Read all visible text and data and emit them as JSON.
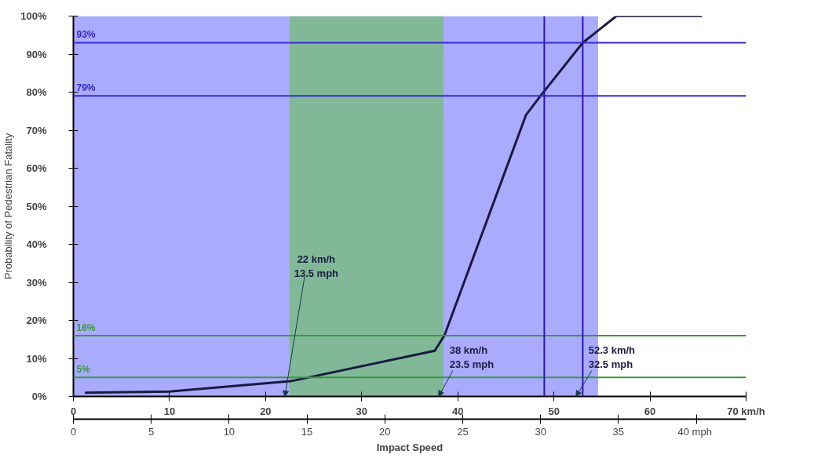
{
  "chart_data": {
    "type": "line",
    "ylabel": "Probability of Pedestrian Fatality",
    "x2label": "Impact Speed",
    "x": [
      1.2,
      10,
      22.6,
      37.6,
      38.6,
      47.1,
      48.6,
      53,
      56.5,
      65.4
    ],
    "series": [
      {
        "color": "#1a1a40",
        "values": [
          1,
          1.3,
          4,
          12,
          16,
          74,
          79,
          93,
          100,
          100
        ]
      }
    ],
    "xlim": [
      0,
      70
    ],
    "xticks": [
      0,
      10,
      20,
      30,
      40,
      50,
      60,
      {
        "value": 70,
        "label": "70 km/h"
      }
    ],
    "x2lim": [
      0,
      43.2
    ],
    "x2ticks": [
      0,
      5,
      10,
      15,
      20,
      25,
      30,
      35,
      {
        "value": 40,
        "label": "40  mph"
      }
    ],
    "ylim": [
      0,
      100
    ],
    "yticks": [
      {
        "value": 0,
        "label": "0%"
      },
      {
        "value": 10,
        "label": "10%"
      },
      {
        "value": 20,
        "label": "20%"
      },
      {
        "value": 30,
        "label": "30%"
      },
      {
        "value": 40,
        "label": "40%"
      },
      {
        "value": 50,
        "label": "50%"
      },
      {
        "value": 60,
        "label": "60%"
      },
      {
        "value": 70,
        "label": "70%"
      },
      {
        "value": 80,
        "label": "80%"
      },
      {
        "value": 90,
        "label": "90%"
      },
      {
        "value": 100,
        "label": "100%"
      }
    ],
    "bands": [
      {
        "axis": "x",
        "from": 0,
        "to": 54.6,
        "color": "#aaaaff"
      },
      {
        "axis": "x",
        "from": 22.5,
        "to": 38.5,
        "color": "#80b898"
      }
    ],
    "ref_lines": [
      {
        "axis": "y",
        "value": 93,
        "label": "93%",
        "color": "#3a2ad0"
      },
      {
        "axis": "y",
        "value": 79,
        "label": "79%",
        "color": "#3a2ad0"
      },
      {
        "axis": "y",
        "value": 16,
        "label": "16%",
        "color": "#3a9a3a"
      },
      {
        "axis": "y",
        "value": 5,
        "label": "5%",
        "color": "#3a9a3a"
      },
      {
        "axis": "x",
        "value": 49,
        "color": "#2a1aa0"
      },
      {
        "axis": "x",
        "value": 53,
        "color": "#2a1aa0"
      }
    ],
    "annotations": [
      {
        "text": "22 km/h\n13.5 mph",
        "x": 22,
        "y": 0
      },
      {
        "text": "38 km/h\n23.5 mph",
        "x": 38,
        "y": 0
      },
      {
        "text": "52.3 km/h\n32.5 mph",
        "x": 52.3,
        "y": 0
      }
    ],
    "grid": false,
    "marker": "none",
    "line_style": "solid"
  }
}
